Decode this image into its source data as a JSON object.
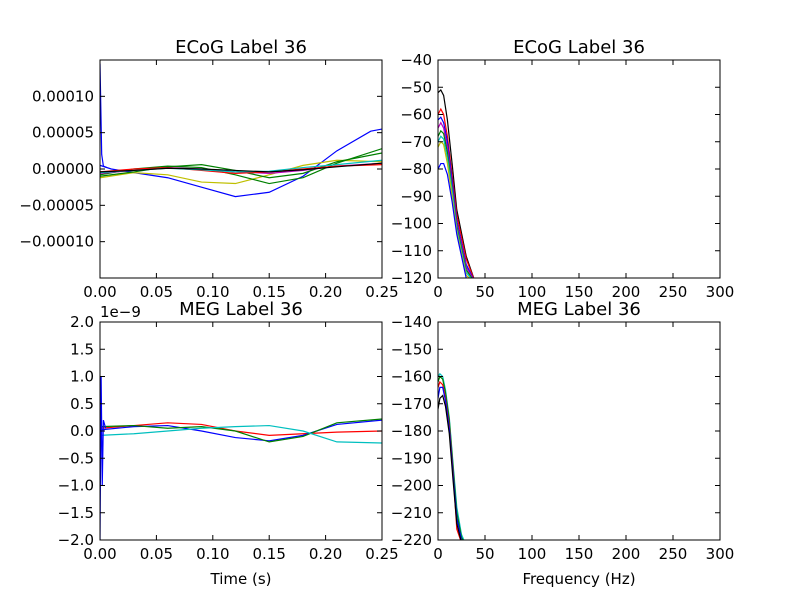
{
  "chart_data": [
    {
      "type": "line",
      "title": "ECoG Label 36",
      "xlabel": "",
      "ylabel": "",
      "xlim": [
        0,
        0.25
      ],
      "ylim": [
        -0.00015,
        0.00015
      ],
      "xticks": [
        "0.00",
        "0.05",
        "0.10",
        "0.15",
        "0.20",
        "0.25"
      ],
      "yticks": [
        {
          "value": 0.0001,
          "label": "0.00010"
        },
        {
          "value": 5e-05,
          "label": "0.00005"
        },
        {
          "value": 0,
          "label": "0.00000"
        },
        {
          "value": -5e-05,
          "label": "−0.00005"
        },
        {
          "value": -0.0001,
          "label": "−0.00010"
        }
      ],
      "offset_text": "",
      "series": [
        {
          "color": "#0000ff",
          "x": [
            0,
            0.01,
            0.03,
            0.06,
            0.09,
            0.12,
            0.15,
            0.18,
            0.21,
            0.24,
            0.25
          ],
          "y": [
            5e-06,
            0.0,
            -5e-06,
            -1.2e-05,
            -2.5e-05,
            -3.8e-05,
            -3.2e-05,
            -1e-05,
            2.5e-05,
            5.2e-05,
            5.5e-05
          ]
        },
        {
          "color": "#bfbf00",
          "x": [
            0,
            0.03,
            0.06,
            0.09,
            0.12,
            0.15,
            0.18,
            0.21,
            0.25
          ],
          "y": [
            -1.2e-05,
            -5e-06,
            -8e-06,
            -1.8e-05,
            -2e-05,
            -8e-06,
            5e-06,
            1.2e-05,
            1e-05
          ]
        },
        {
          "color": "#008000",
          "x": [
            0,
            0.03,
            0.06,
            0.09,
            0.12,
            0.15,
            0.18,
            0.21,
            0.25
          ],
          "y": [
            -8e-06,
            0.0,
            4e-06,
            2e-06,
            -8e-06,
            -2e-05,
            -1.2e-05,
            8e-06,
            2.8e-05
          ]
        },
        {
          "color": "#008000",
          "x": [
            0,
            0.03,
            0.06,
            0.09,
            0.12,
            0.15,
            0.18,
            0.21,
            0.25
          ],
          "y": [
            -1e-05,
            -4e-06,
            3e-06,
            6e-06,
            -2e-06,
            -1.2e-05,
            -6e-06,
            1e-05,
            2.2e-05
          ]
        },
        {
          "color": "#bf00bf",
          "x": [
            0,
            0.03,
            0.06,
            0.09,
            0.12,
            0.15,
            0.18,
            0.21,
            0.25
          ],
          "y": [
            -6e-06,
            -2e-06,
            2e-06,
            0.0,
            -4e-06,
            -6e-06,
            -2e-06,
            4e-06,
            8e-06
          ]
        },
        {
          "color": "#ff0000",
          "x": [
            0,
            0.03,
            0.06,
            0.09,
            0.12,
            0.15,
            0.18,
            0.21,
            0.25
          ],
          "y": [
            -4e-06,
            0.0,
            2e-06,
            -2e-06,
            -6e-06,
            -4e-06,
            0.0,
            4e-06,
            6e-06
          ]
        },
        {
          "color": "#00bfbf",
          "x": [
            0,
            0.03,
            0.06,
            0.09,
            0.12,
            0.15,
            0.18,
            0.21,
            0.25
          ],
          "y": [
            -5e-06,
            -2e-06,
            1e-06,
            -1e-06,
            -4e-06,
            -3e-06,
            2e-06,
            6e-06,
            1.2e-05
          ]
        },
        {
          "color": "#000000",
          "x": [
            0,
            0.03,
            0.06,
            0.09,
            0.12,
            0.15,
            0.18,
            0.21,
            0.25
          ],
          "y": [
            -4e-06,
            -2e-06,
            1e-06,
            0.0,
            -2e-06,
            -4e-06,
            -1e-06,
            3e-06,
            8e-06
          ]
        },
        {
          "color": "#0000ff",
          "x": [
            0,
            0.0015,
            0.003,
            0.006
          ],
          "y": [
            0.000145,
            2e-05,
            4e-06,
            2e-06
          ]
        }
      ]
    },
    {
      "type": "line",
      "title": "ECoG Label 36",
      "xlabel": "",
      "ylabel": "",
      "xlim": [
        0,
        300
      ],
      "ylim": [
        -120,
        -40
      ],
      "xticks": [
        "0",
        "50",
        "100",
        "150",
        "200",
        "250",
        "300"
      ],
      "yticks": [
        {
          "value": -40,
          "label": "−40"
        },
        {
          "value": -50,
          "label": "−50"
        },
        {
          "value": -60,
          "label": "−60"
        },
        {
          "value": -70,
          "label": "−70"
        },
        {
          "value": -80,
          "label": "−80"
        },
        {
          "value": -90,
          "label": "−90"
        },
        {
          "value": -100,
          "label": "−100"
        },
        {
          "value": -110,
          "label": "−110"
        },
        {
          "value": -120,
          "label": "−120"
        }
      ],
      "offset_text": "",
      "series": [
        {
          "color": "#000000",
          "x": [
            0,
            3,
            6,
            10,
            15,
            20,
            30,
            40
          ],
          "y": [
            -52,
            -51,
            -53,
            -62,
            -78,
            -95,
            -112,
            -122
          ]
        },
        {
          "color": "#ff0000",
          "x": [
            0,
            3,
            6,
            10,
            15,
            20,
            30,
            40
          ],
          "y": [
            -60,
            -58,
            -60,
            -68,
            -82,
            -97,
            -113,
            -122
          ]
        },
        {
          "color": "#0000ff",
          "x": [
            0,
            3,
            6,
            10,
            15,
            20,
            30,
            40
          ],
          "y": [
            -62,
            -61,
            -63,
            -70,
            -84,
            -99,
            -115,
            -122
          ]
        },
        {
          "color": "#bf00bf",
          "x": [
            0,
            3,
            6,
            10,
            15,
            20,
            30,
            40
          ],
          "y": [
            -65,
            -63,
            -65,
            -72,
            -86,
            -100,
            -116,
            -122
          ]
        },
        {
          "color": "#008000",
          "x": [
            0,
            3,
            6,
            10,
            15,
            20,
            30,
            40
          ],
          "y": [
            -68,
            -66,
            -67,
            -74,
            -87,
            -101,
            -117,
            -122
          ]
        },
        {
          "color": "#00bfbf",
          "x": [
            0,
            3,
            6,
            10,
            15,
            20,
            30,
            40
          ],
          "y": [
            -70,
            -68,
            -69,
            -76,
            -88,
            -102,
            -118,
            -122
          ]
        },
        {
          "color": "#bfbf00",
          "x": [
            0,
            3,
            6,
            10,
            15,
            20,
            30,
            40
          ],
          "y": [
            -72,
            -70,
            -71,
            -78,
            -90,
            -103,
            -119,
            -122
          ]
        },
        {
          "color": "#0000ff",
          "x": [
            0,
            3,
            6,
            10,
            15,
            20,
            30,
            40
          ],
          "y": [
            -80,
            -78,
            -78,
            -82,
            -92,
            -104,
            -120,
            -122
          ]
        }
      ]
    },
    {
      "type": "line",
      "title": "MEG Label 36",
      "xlabel": "Time (s)",
      "ylabel": "",
      "xlim": [
        0,
        0.25
      ],
      "ylim": [
        -2.0,
        2.0
      ],
      "xticks": [
        "0.00",
        "0.05",
        "0.10",
        "0.15",
        "0.20",
        "0.25"
      ],
      "yticks": [
        {
          "value": 2.0,
          "label": "2.0"
        },
        {
          "value": 1.5,
          "label": "1.5"
        },
        {
          "value": 1.0,
          "label": "1.0"
        },
        {
          "value": 0.5,
          "label": "0.5"
        },
        {
          "value": 0.0,
          "label": "0.0"
        },
        {
          "value": -0.5,
          "label": "−0.5"
        },
        {
          "value": -1.0,
          "label": "−1.0"
        },
        {
          "value": -1.5,
          "label": "−1.5"
        },
        {
          "value": -2.0,
          "label": "−2.0"
        }
      ],
      "offset_text": "1e−9",
      "series": [
        {
          "color": "#ff0000",
          "x": [
            0,
            0.03,
            0.06,
            0.09,
            0.12,
            0.15,
            0.18,
            0.21,
            0.25
          ],
          "y": [
            0.05,
            0.1,
            0.15,
            0.12,
            0.0,
            -0.08,
            -0.05,
            -0.02,
            0.0
          ]
        },
        {
          "color": "#0000ff",
          "x": [
            0,
            0.03,
            0.06,
            0.09,
            0.12,
            0.15,
            0.18,
            0.21,
            0.25
          ],
          "y": [
            0.02,
            0.08,
            0.1,
            0.0,
            -0.12,
            -0.18,
            -0.08,
            0.12,
            0.2
          ]
        },
        {
          "color": "#008000",
          "x": [
            0,
            0.03,
            0.06,
            0.09,
            0.12,
            0.15,
            0.18,
            0.21,
            0.25
          ],
          "y": [
            0.08,
            0.1,
            0.05,
            0.08,
            0.0,
            -0.2,
            -0.1,
            0.15,
            0.22
          ]
        },
        {
          "color": "#00bfbf",
          "x": [
            0,
            0.03,
            0.06,
            0.09,
            0.12,
            0.15,
            0.18,
            0.21,
            0.25
          ],
          "y": [
            -0.08,
            -0.05,
            0.0,
            0.05,
            0.08,
            0.1,
            0.0,
            -0.2,
            -0.22
          ]
        },
        {
          "color": "#0000ff",
          "x": [
            0,
            0.001,
            0.002,
            0.003,
            0.005
          ],
          "y": [
            -2.0,
            1.0,
            -1.0,
            0.2,
            0.05
          ]
        }
      ]
    },
    {
      "type": "line",
      "title": "MEG Label 36",
      "xlabel": "Frequency (Hz)",
      "ylabel": "",
      "xlim": [
        0,
        300
      ],
      "ylim": [
        -220,
        -140
      ],
      "xticks": [
        "0",
        "50",
        "100",
        "150",
        "200",
        "250",
        "300"
      ],
      "yticks": [
        {
          "value": -140,
          "label": "−140"
        },
        {
          "value": -150,
          "label": "−150"
        },
        {
          "value": -160,
          "label": "−160"
        },
        {
          "value": -170,
          "label": "−170"
        },
        {
          "value": -180,
          "label": "−180"
        },
        {
          "value": -190,
          "label": "−190"
        },
        {
          "value": -200,
          "label": "−200"
        },
        {
          "value": -210,
          "label": "−210"
        },
        {
          "value": -220,
          "label": "−220"
        }
      ],
      "offset_text": "",
      "series": [
        {
          "color": "#00bfbf",
          "x": [
            0,
            2,
            5,
            8,
            12,
            16,
            20,
            25,
            30
          ],
          "y": [
            -160,
            -159,
            -160,
            -165,
            -175,
            -192,
            -208,
            -218,
            -222
          ]
        },
        {
          "color": "#008000",
          "x": [
            0,
            2,
            5,
            8,
            12,
            16,
            20,
            25,
            30
          ],
          "y": [
            -162,
            -160,
            -161,
            -166,
            -176,
            -193,
            -210,
            -219,
            -222
          ]
        },
        {
          "color": "#ff0000",
          "x": [
            0,
            2,
            5,
            8,
            12,
            16,
            20,
            25,
            30
          ],
          "y": [
            -164,
            -162,
            -163,
            -168,
            -178,
            -195,
            -216,
            -221,
            -222
          ]
        },
        {
          "color": "#0000ff",
          "x": [
            0,
            2,
            5,
            8,
            12,
            16,
            20,
            25,
            30
          ],
          "y": [
            -168,
            -164,
            -164,
            -169,
            -179,
            -196,
            -212,
            -220,
            -222
          ]
        },
        {
          "color": "#000000",
          "x": [
            0,
            2,
            5,
            8,
            12,
            16,
            20,
            25,
            30
          ],
          "y": [
            -172,
            -168,
            -167,
            -171,
            -181,
            -198,
            -214,
            -221,
            -222
          ]
        }
      ]
    }
  ]
}
